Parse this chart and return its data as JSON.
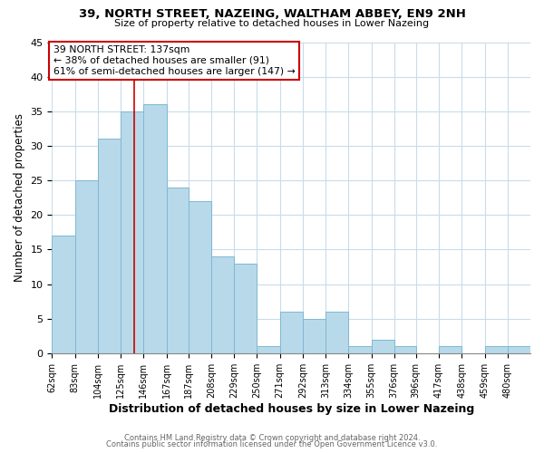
{
  "title": "39, NORTH STREET, NAZEING, WALTHAM ABBEY, EN9 2NH",
  "subtitle": "Size of property relative to detached houses in Lower Nazeing",
  "xlabel": "Distribution of detached houses by size in Lower Nazeing",
  "ylabel": "Number of detached properties",
  "bin_labels": [
    "62sqm",
    "83sqm",
    "104sqm",
    "125sqm",
    "146sqm",
    "167sqm",
    "187sqm",
    "208sqm",
    "229sqm",
    "250sqm",
    "271sqm",
    "292sqm",
    "313sqm",
    "334sqm",
    "355sqm",
    "376sqm",
    "396sqm",
    "417sqm",
    "438sqm",
    "459sqm",
    "480sqm"
  ],
  "bar_heights": [
    17,
    25,
    31,
    35,
    36,
    24,
    22,
    14,
    13,
    1,
    6,
    5,
    6,
    1,
    2,
    1,
    0,
    1,
    0,
    1,
    1
  ],
  "bar_color": "#b8d9ea",
  "bar_edge_color": "#7fb8d4",
  "property_size": 137,
  "bin_edges": [
    62,
    83,
    104,
    125,
    146,
    167,
    187,
    208,
    229,
    250,
    271,
    292,
    313,
    334,
    355,
    376,
    396,
    417,
    438,
    459,
    480,
    501
  ],
  "annotation_title": "39 NORTH STREET: 137sqm",
  "annotation_line1": "← 38% of detached houses are smaller (91)",
  "annotation_line2": "61% of semi-detached houses are larger (147) →",
  "annotation_box_color": "#ffffff",
  "annotation_box_edge": "#cc0000",
  "vline_color": "#cc0000",
  "ylim": [
    0,
    45
  ],
  "yticks": [
    0,
    5,
    10,
    15,
    20,
    25,
    30,
    35,
    40,
    45
  ],
  "footer_line1": "Contains HM Land Registry data © Crown copyright and database right 2024.",
  "footer_line2": "Contains public sector information licensed under the Open Government Licence v3.0.",
  "background_color": "#ffffff",
  "grid_color": "#c8dcea"
}
